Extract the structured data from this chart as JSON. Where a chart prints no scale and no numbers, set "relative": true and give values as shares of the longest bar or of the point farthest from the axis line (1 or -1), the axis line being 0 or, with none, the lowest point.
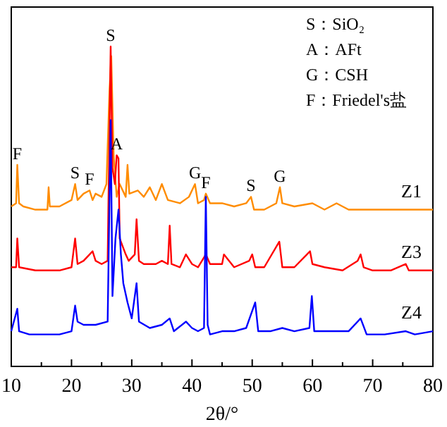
{
  "chart_data": {
    "type": "line",
    "relative": true,
    "xlabel": "2θ/°",
    "xlim": [
      10,
      80
    ],
    "xticks": [
      10,
      {
        "value": 15,
        "label": null
      },
      20,
      {
        "value": 25,
        "label": null
      },
      30,
      {
        "value": 35,
        "label": null
      },
      40,
      {
        "value": 45,
        "label": null
      },
      50,
      {
        "value": 55,
        "label": null
      },
      60,
      {
        "value": 65,
        "label": null
      },
      70,
      {
        "value": 75,
        "label": null
      },
      80
    ],
    "legend": false,
    "grid": false,
    "marker": "none",
    "line_style": "solid",
    "series": [
      {
        "name": "Z1",
        "color": "#ff8c00",
        "x": [
          10,
          10.8,
          11,
          11.3,
          12,
          14,
          16,
          16.2,
          16.4,
          18,
          20,
          20.6,
          21,
          22,
          23,
          23.5,
          24,
          25,
          25.8,
          26.3,
          26.6,
          27,
          27.5,
          28,
          29,
          29.3,
          29.6,
          31,
          32,
          33,
          34,
          35,
          36,
          38,
          39.5,
          40.5,
          41,
          42,
          42.3,
          43,
          45,
          47,
          49,
          49.8,
          50.3,
          52,
          54,
          54.6,
          55,
          57,
          60,
          62,
          64,
          66,
          68,
          70,
          72,
          75,
          78,
          80
        ],
        "values": [
          0.5,
          0.51,
          0.63,
          0.51,
          0.5,
          0.49,
          0.49,
          0.56,
          0.5,
          0.5,
          0.52,
          0.57,
          0.52,
          0.54,
          0.55,
          0.52,
          0.54,
          0.53,
          0.57,
          0.86,
          0.97,
          0.66,
          0.53,
          0.57,
          0.53,
          0.63,
          0.54,
          0.55,
          0.53,
          0.56,
          0.52,
          0.57,
          0.52,
          0.51,
          0.53,
          0.57,
          0.51,
          0.52,
          0.54,
          0.51,
          0.51,
          0.5,
          0.51,
          0.53,
          0.49,
          0.49,
          0.51,
          0.56,
          0.51,
          0.5,
          0.51,
          0.49,
          0.51,
          0.49,
          0.49,
          0.49,
          0.49,
          0.49,
          0.49,
          0.49
        ]
      },
      {
        "name": "Z3",
        "color": "#ff0000",
        "x": [
          10,
          10.8,
          11,
          11.3,
          14,
          16,
          18,
          20,
          20.6,
          21,
          22,
          23.5,
          24,
          25,
          26,
          26.5,
          26.8,
          27.2,
          27.5,
          27.8,
          28,
          29,
          29.5,
          30.5,
          30.8,
          31.2,
          32,
          34,
          35,
          36,
          36.3,
          36.6,
          38,
          39,
          40,
          41,
          42.3,
          43,
          45,
          45.3,
          47,
          49.5,
          50,
          50.5,
          52,
          54.5,
          55,
          57,
          59.6,
          60,
          62,
          65,
          67.5,
          68,
          68.5,
          70,
          73,
          75.5,
          76,
          80
        ],
        "values": [
          0.31,
          0.31,
          0.4,
          0.31,
          0.3,
          0.3,
          0.3,
          0.31,
          0.4,
          0.32,
          0.33,
          0.36,
          0.33,
          0.32,
          0.33,
          1,
          0.62,
          0.57,
          0.66,
          0.65,
          0.4,
          0.35,
          0.33,
          0.35,
          0.46,
          0.33,
          0.32,
          0.32,
          0.33,
          0.32,
          0.44,
          0.32,
          0.31,
          0.35,
          0.32,
          0.31,
          0.35,
          0.32,
          0.32,
          0.35,
          0.31,
          0.33,
          0.35,
          0.31,
          0.31,
          0.39,
          0.31,
          0.31,
          0.36,
          0.32,
          0.31,
          0.3,
          0.33,
          0.35,
          0.31,
          0.3,
          0.3,
          0.32,
          0.3,
          0.3
        ]
      },
      {
        "name": "Z4",
        "color": "#0000ff",
        "x": [
          10,
          11,
          11.3,
          13,
          15,
          18,
          20,
          20.6,
          21,
          22,
          24,
          26,
          26.5,
          26.8,
          27.3,
          27.8,
          28.2,
          28.6,
          29.3,
          30,
          30.8,
          31.2,
          33,
          35,
          36.3,
          37,
          39,
          40,
          41,
          42,
          42.3,
          42.6,
          43,
          45,
          47,
          49,
          50.5,
          51,
          53,
          55,
          57,
          59.5,
          59.9,
          60.3,
          63,
          66,
          68,
          69,
          72,
          75.5,
          77,
          80
        ],
        "values": [
          0.11,
          0.18,
          0.11,
          0.1,
          0.1,
          0.1,
          0.11,
          0.19,
          0.14,
          0.13,
          0.13,
          0.14,
          0.77,
          0.22,
          0.4,
          0.49,
          0.35,
          0.26,
          0.2,
          0.15,
          0.26,
          0.14,
          0.12,
          0.13,
          0.15,
          0.11,
          0.14,
          0.12,
          0.11,
          0.12,
          0.53,
          0.13,
          0.1,
          0.11,
          0.11,
          0.12,
          0.2,
          0.11,
          0.11,
          0.12,
          0.11,
          0.12,
          0.22,
          0.11,
          0.11,
          0.11,
          0.15,
          0.1,
          0.1,
          0.11,
          0.1,
          0.11
        ]
      }
    ],
    "annotations": [
      {
        "text": "S",
        "x": 26.5,
        "y": 1
      },
      {
        "text": "A",
        "x": 27.5,
        "y": 0.66
      },
      {
        "text": "F",
        "x": 11,
        "y": 0.63
      },
      {
        "text": "S",
        "x": 20.6,
        "y": 0.57
      },
      {
        "text": "F",
        "x": 23,
        "y": 0.55
      },
      {
        "text": "G",
        "x": 40.5,
        "y": 0.57
      },
      {
        "text": "F",
        "x": 42.3,
        "y": 0.54
      },
      {
        "text": "S",
        "x": 49.8,
        "y": 0.53
      },
      {
        "text": "G",
        "x": 54.6,
        "y": 0.56
      },
      "S：SiO₂",
      "A：AFt",
      "G：CSH",
      "F：Friedel's盐"
    ]
  }
}
